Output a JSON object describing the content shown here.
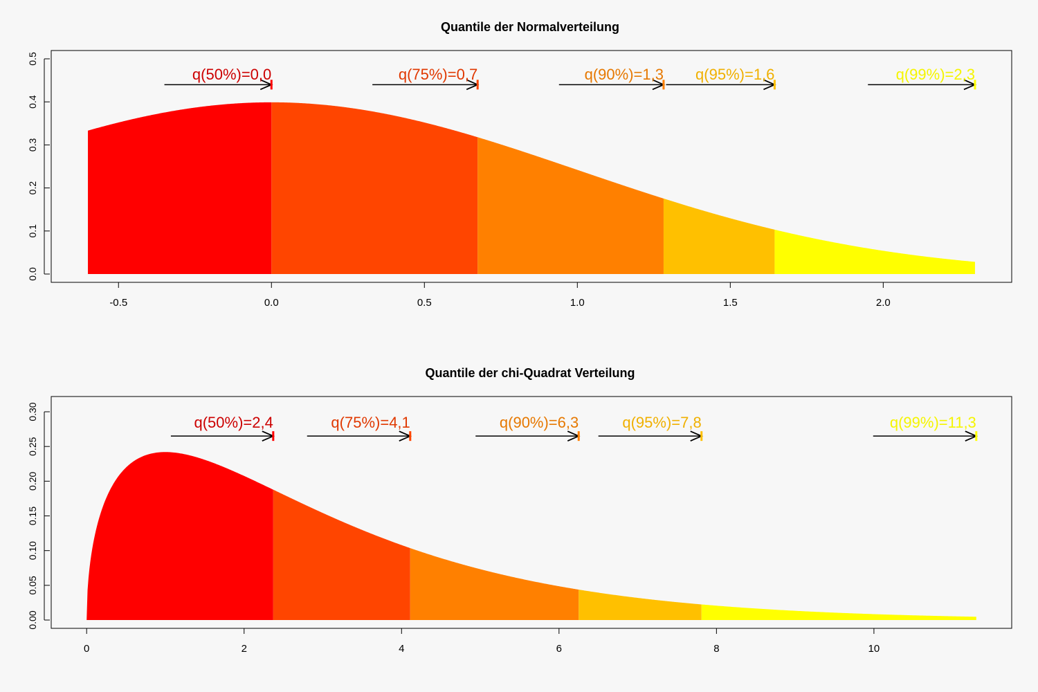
{
  "chart_data": [
    {
      "type": "area",
      "title": "Quantile der Normalverteilung",
      "distribution": "normal",
      "curve_x_range": [
        -0.6,
        2.3
      ],
      "xlim": [
        -0.72,
        2.42
      ],
      "ylim": [
        0,
        0.5
      ],
      "x_ticks": [
        -0.5,
        0.0,
        0.5,
        1.0,
        1.5,
        2.0
      ],
      "x_tick_labels": [
        "-0.5",
        "0.0",
        "0.5",
        "1.0",
        "1.5",
        "2.0"
      ],
      "y_ticks": [
        0,
        0.1,
        0.2,
        0.3,
        0.4,
        0.5
      ],
      "y_tick_labels": [
        "0.0",
        "0.1",
        "0.2",
        "0.3",
        "0.4",
        "0.5"
      ],
      "quantiles": [
        {
          "label": "q(50%)=0,0",
          "value": 0.0,
          "arrow_from": -0.35
        },
        {
          "label": "q(75%)=0,7",
          "value": 0.674,
          "arrow_from": 0.33
        },
        {
          "label": "q(90%)=1,3",
          "value": 1.282,
          "arrow_from": 0.94
        },
        {
          "label": "q(95%)=1,6",
          "value": 1.645,
          "arrow_from": 1.29
        },
        {
          "label": "q(99%)=2,3",
          "value": 2.3,
          "arrow_from": 1.95
        }
      ],
      "arrow_y": 0.44,
      "label_y": 0.465
    },
    {
      "type": "area",
      "title": "Quantile der chi-Quadrat Verteilung",
      "distribution": "chisq",
      "df": 3,
      "curve_x_range": [
        0,
        11.3
      ],
      "xlim": [
        -0.45,
        11.75
      ],
      "ylim": [
        0,
        0.31
      ],
      "x_ticks": [
        0,
        2,
        4,
        6,
        8,
        10
      ],
      "x_tick_labels": [
        "0",
        "2",
        "4",
        "6",
        "8",
        "10"
      ],
      "y_ticks": [
        0,
        0.05,
        0.1,
        0.15,
        0.2,
        0.25,
        0.3
      ],
      "y_tick_labels": [
        "0.00",
        "0.05",
        "0.10",
        "0.15",
        "0.20",
        "0.25",
        "0.30"
      ],
      "quantiles": [
        {
          "label": "q(50%)=2,4",
          "value": 2.37,
          "arrow_from": 1.07
        },
        {
          "label": "q(75%)=4,1",
          "value": 4.11,
          "arrow_from": 2.8
        },
        {
          "label": "q(90%)=6,3",
          "value": 6.25,
          "arrow_from": 4.94
        },
        {
          "label": "q(95%)=7,8",
          "value": 7.81,
          "arrow_from": 6.5
        },
        {
          "label": "q(99%)=11,3",
          "value": 11.3,
          "arrow_from": 9.99
        }
      ],
      "arrow_y": 0.265,
      "label_y": 0.285
    }
  ],
  "band_colors": [
    "#ff0000",
    "#ff4500",
    "#ff8000",
    "#ffc000",
    "#ffff00"
  ],
  "label_colors": [
    "#cc0000",
    "#e03800",
    "#e67800",
    "#f0b000",
    "#f5f500"
  ]
}
